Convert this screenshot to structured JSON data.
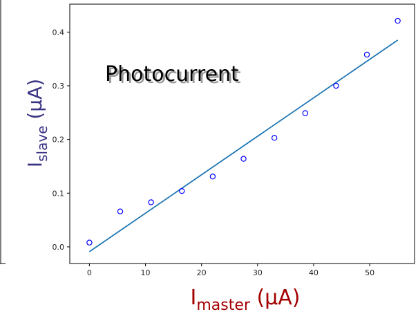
{
  "chart_data": {
    "type": "scatter",
    "annotation": "Photocurrent",
    "xlabel": {
      "main": "I",
      "sub": "master",
      "unit": " (μA)"
    },
    "ylabel": {
      "main": "I",
      "sub": "slave",
      "unit": " (μA)"
    },
    "xlim": [
      -3.5,
      58.0
    ],
    "ylim": [
      -0.031,
      0.452
    ],
    "xticks": [
      0,
      10,
      20,
      30,
      40,
      50
    ],
    "yticks": [
      0.0,
      0.1,
      0.2,
      0.3,
      0.4
    ],
    "xtick_labels": [
      "0",
      "10",
      "20",
      "30",
      "40",
      "50"
    ],
    "ytick_labels": [
      "0.0",
      "0.1",
      "0.2",
      "0.3",
      "0.4"
    ],
    "series": [
      {
        "kind": "points",
        "x": [
          0,
          5.5,
          11,
          16.5,
          22,
          27.5,
          33,
          38.5,
          44,
          49.5,
          55
        ],
        "y": [
          0.008,
          0.066,
          0.083,
          0.104,
          0.131,
          0.164,
          0.203,
          0.249,
          0.3,
          0.358,
          0.421
        ],
        "marker": "open-circle",
        "color": "#0000ff"
      },
      {
        "kind": "fit-line",
        "x": [
          0,
          55
        ],
        "y": [
          -0.009,
          0.385
        ],
        "color": "#1f77b4"
      }
    ],
    "grid": false,
    "colors": {
      "xlabel": "#a30000",
      "ylabel": "#3a3584",
      "annotation": "#000000"
    }
  }
}
